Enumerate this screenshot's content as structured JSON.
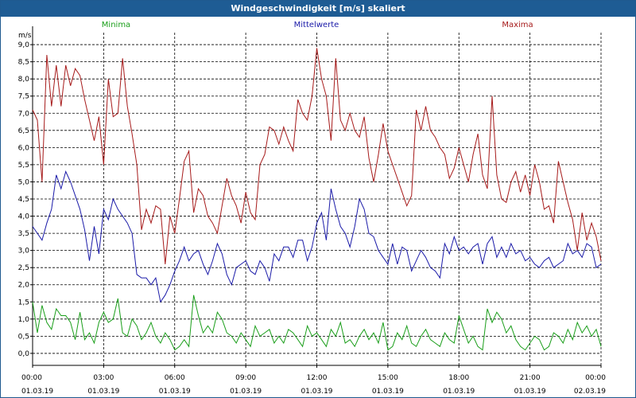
{
  "window": {
    "title": "Windgeschwindigkeit [m/s] skaliert"
  },
  "chart_data": {
    "type": "line",
    "title": "Windgeschwindigkeit [m/s] skaliert",
    "ylabel": "m/s",
    "ylim": [
      -0.35,
      9.35
    ],
    "yticks": [
      0.0,
      0.5,
      1.0,
      1.5,
      2.0,
      2.5,
      3.0,
      3.5,
      4.0,
      4.5,
      5.0,
      5.5,
      6.0,
      6.5,
      7.0,
      7.5,
      8.0,
      8.5,
      9.0
    ],
    "ytick_labels": [
      "0,0",
      "0,5",
      "1,0",
      "1,5",
      "2,0",
      "2,5",
      "3,0",
      "3,5",
      "4,0",
      "4,5",
      "5,0",
      "5,5",
      "6,0",
      "6,5",
      "7,0",
      "7,5",
      "8,0",
      "8,5",
      "9,0"
    ],
    "xlim": [
      "01.03.19 00:00",
      "02.03.19 00:00"
    ],
    "xticks": [
      {
        "time": "00:00",
        "date": "01.03.19"
      },
      {
        "time": "03:00",
        "date": "01.03.19"
      },
      {
        "time": "06:00",
        "date": "01.03.19"
      },
      {
        "time": "09:00",
        "date": "01.03.19"
      },
      {
        "time": "12:00",
        "date": "01.03.19"
      },
      {
        "time": "15:00",
        "date": "01.03.19"
      },
      {
        "time": "18:00",
        "date": "01.03.19"
      },
      {
        "time": "21:00",
        "date": "01.03.19"
      },
      {
        "time": "00:00",
        "date": "02.03.19"
      }
    ],
    "grid": true,
    "legend_position": "top",
    "x_hours": [
      0.0,
      0.2,
      0.4,
      0.6,
      0.8,
      1.0,
      1.2,
      1.4,
      1.6,
      1.8,
      2.0,
      2.2,
      2.4,
      2.6,
      2.8,
      3.0,
      3.2,
      3.4,
      3.6,
      3.8,
      4.0,
      4.2,
      4.4,
      4.6,
      4.8,
      5.0,
      5.2,
      5.4,
      5.6,
      5.8,
      6.0,
      6.2,
      6.4,
      6.6,
      6.8,
      7.0,
      7.2,
      7.4,
      7.6,
      7.8,
      8.0,
      8.2,
      8.4,
      8.6,
      8.8,
      9.0,
      9.2,
      9.4,
      9.6,
      9.8,
      10.0,
      10.2,
      10.4,
      10.6,
      10.8,
      11.0,
      11.2,
      11.4,
      11.6,
      11.8,
      12.0,
      12.2,
      12.4,
      12.6,
      12.8,
      13.0,
      13.2,
      13.4,
      13.6,
      13.8,
      14.0,
      14.2,
      14.4,
      14.6,
      14.8,
      15.0,
      15.2,
      15.4,
      15.6,
      15.8,
      16.0,
      16.2,
      16.4,
      16.6,
      16.8,
      17.0,
      17.2,
      17.4,
      17.6,
      17.8,
      18.0,
      18.2,
      18.4,
      18.6,
      18.8,
      19.0,
      19.2,
      19.4,
      19.6,
      19.8,
      20.0,
      20.2,
      20.4,
      20.6,
      20.8,
      21.0,
      21.2,
      21.4,
      21.6,
      21.8,
      22.0,
      22.2,
      22.4,
      22.6,
      22.8,
      23.0,
      23.2,
      23.4,
      23.6,
      23.8,
      24.0
    ],
    "series": [
      {
        "name": "Minima",
        "color": "#1a9e1a",
        "values": [
          1.5,
          0.6,
          1.4,
          0.9,
          0.7,
          1.3,
          1.1,
          1.1,
          0.9,
          0.4,
          1.2,
          0.4,
          0.6,
          0.3,
          0.9,
          1.2,
          0.9,
          1.0,
          1.6,
          0.6,
          0.5,
          1.0,
          0.8,
          0.4,
          0.6,
          0.9,
          0.5,
          0.3,
          0.6,
          0.4,
          0.1,
          0.2,
          0.4,
          0.2,
          1.7,
          1.1,
          0.6,
          0.8,
          0.6,
          1.2,
          1.0,
          0.6,
          0.5,
          0.3,
          0.6,
          0.4,
          0.2,
          0.8,
          0.5,
          0.6,
          0.7,
          0.3,
          0.5,
          0.3,
          0.7,
          0.6,
          0.4,
          0.2,
          0.8,
          0.5,
          0.6,
          0.4,
          0.2,
          0.7,
          0.5,
          0.9,
          0.3,
          0.4,
          0.2,
          0.5,
          0.7,
          0.4,
          0.6,
          0.3,
          0.9,
          0.1,
          0.2,
          0.6,
          0.4,
          0.8,
          0.3,
          0.2,
          0.5,
          0.7,
          0.4,
          0.3,
          0.2,
          0.6,
          0.4,
          0.3,
          1.1,
          0.7,
          0.3,
          0.5,
          0.2,
          0.1,
          1.3,
          0.9,
          1.2,
          1.0,
          0.6,
          0.8,
          0.4,
          0.2,
          0.1,
          0.3,
          0.5,
          0.4,
          0.1,
          0.2,
          0.6,
          0.5,
          0.3,
          0.7,
          0.4,
          0.9,
          0.6,
          0.8,
          0.5,
          0.7,
          0.2
        ]
      },
      {
        "name": "Mittelwerte",
        "color": "#1a1aa8",
        "values": [
          3.7,
          3.5,
          3.3,
          3.8,
          4.2,
          5.2,
          4.8,
          5.3,
          5.0,
          4.6,
          4.2,
          3.6,
          2.7,
          3.7,
          2.9,
          4.2,
          3.9,
          4.5,
          4.2,
          4.0,
          3.8,
          3.5,
          2.3,
          2.2,
          2.2,
          2.0,
          2.2,
          1.5,
          1.7,
          2.0,
          2.4,
          2.7,
          3.1,
          2.7,
          2.9,
          3.0,
          2.6,
          2.3,
          2.7,
          3.2,
          2.9,
          2.3,
          2.0,
          2.5,
          2.6,
          2.7,
          2.4,
          2.3,
          2.7,
          2.5,
          2.1,
          2.9,
          2.7,
          3.1,
          3.1,
          2.8,
          3.3,
          3.3,
          2.7,
          3.1,
          3.8,
          4.1,
          3.3,
          4.8,
          4.2,
          3.7,
          3.5,
          3.1,
          3.7,
          4.5,
          4.2,
          3.5,
          3.4,
          3.0,
          2.8,
          2.6,
          3.2,
          2.6,
          3.1,
          3.0,
          2.4,
          2.7,
          3.0,
          2.8,
          2.5,
          2.4,
          2.2,
          3.2,
          2.9,
          3.4,
          3.0,
          3.1,
          2.9,
          3.1,
          3.2,
          2.6,
          3.2,
          3.4,
          2.8,
          3.1,
          2.8,
          3.2,
          2.9,
          3.0,
          2.7,
          2.8,
          2.6,
          2.5,
          2.7,
          2.8,
          2.5,
          2.6,
          2.7,
          3.2,
          2.9,
          3.0,
          2.8,
          3.2,
          3.1,
          2.5,
          2.6
        ]
      },
      {
        "name": "Maxima",
        "color": "#a61a1a",
        "values": [
          7.1,
          6.8,
          5.0,
          8.7,
          7.2,
          8.4,
          7.2,
          8.4,
          7.8,
          8.3,
          8.1,
          7.4,
          6.8,
          6.2,
          6.9,
          5.5,
          8.0,
          6.9,
          7.0,
          8.6,
          7.2,
          6.4,
          5.5,
          3.6,
          4.2,
          3.8,
          4.3,
          4.2,
          2.6,
          4.0,
          3.5,
          4.5,
          5.6,
          5.9,
          4.1,
          4.8,
          4.6,
          4.0,
          3.8,
          3.5,
          4.3,
          5.1,
          4.6,
          4.3,
          3.8,
          4.7,
          4.1,
          3.9,
          5.5,
          5.8,
          6.6,
          6.5,
          6.1,
          6.6,
          6.2,
          5.9,
          7.4,
          7.0,
          6.8,
          7.5,
          8.9,
          8.0,
          7.5,
          6.2,
          8.6,
          6.8,
          6.5,
          7.0,
          6.5,
          6.3,
          6.9,
          5.7,
          5.0,
          5.8,
          6.7,
          5.9,
          5.5,
          5.1,
          4.7,
          4.3,
          4.6,
          7.1,
          6.5,
          7.2,
          6.5,
          6.3,
          6.0,
          5.8,
          5.1,
          5.4,
          6.0,
          5.5,
          5.0,
          5.8,
          6.4,
          5.2,
          4.8,
          7.5,
          5.2,
          4.5,
          4.4,
          5.0,
          5.3,
          4.7,
          5.2,
          4.6,
          5.5,
          5.0,
          4.2,
          4.3,
          3.8,
          5.6,
          5.0,
          4.4,
          3.9,
          3.0,
          4.1,
          3.3,
          3.8,
          3.4,
          2.7
        ]
      }
    ]
  }
}
